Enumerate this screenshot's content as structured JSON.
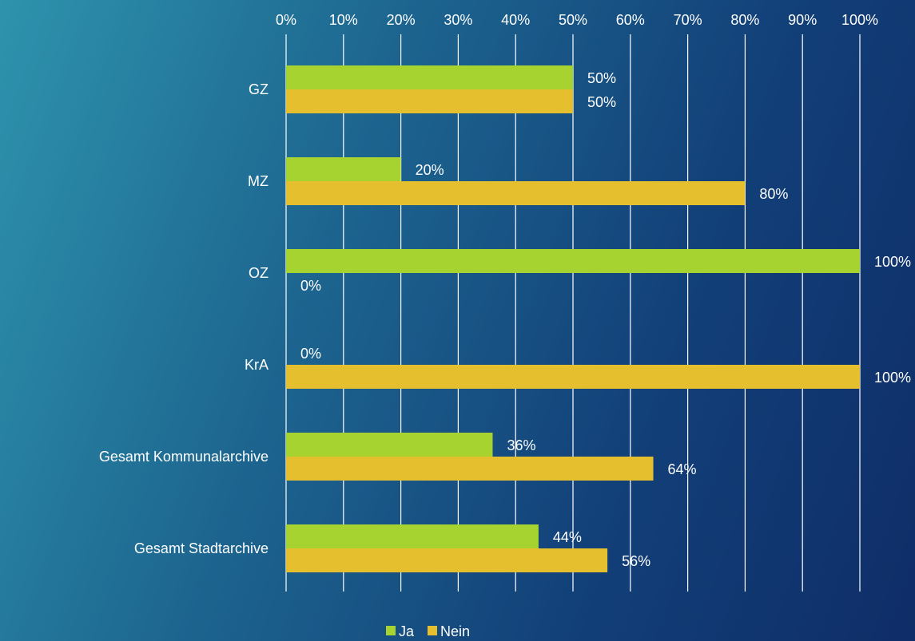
{
  "chart_data": {
    "type": "bar",
    "orientation": "horizontal",
    "title": "",
    "xlabel": "",
    "ylabel": "",
    "xlim": [
      0,
      100
    ],
    "x_ticks": [
      "0%",
      "10%",
      "20%",
      "30%",
      "40%",
      "50%",
      "60%",
      "70%",
      "80%",
      "90%",
      "100%"
    ],
    "x_axis_position": "top",
    "grid": true,
    "legend": "bottom",
    "categories": [
      "GZ",
      "MZ",
      "OZ",
      "KrA",
      "Gesamt Kommunalarchive",
      "Gesamt Stadtarchive"
    ],
    "series": [
      {
        "name": "Ja",
        "color": "#a6d32f",
        "values": [
          50,
          20,
          100,
          0,
          36,
          44
        ],
        "labels": [
          "50%",
          "20%",
          "100%",
          "0%",
          "36%",
          "44%"
        ]
      },
      {
        "name": "Nein",
        "color": "#e6bf2f",
        "values": [
          50,
          80,
          0,
          100,
          64,
          56
        ],
        "labels": [
          "50%",
          "80%",
          "0%",
          "100%",
          "64%",
          "56%"
        ]
      }
    ]
  },
  "colors": {
    "text": "#ffffff",
    "grid": "#ffffff"
  }
}
